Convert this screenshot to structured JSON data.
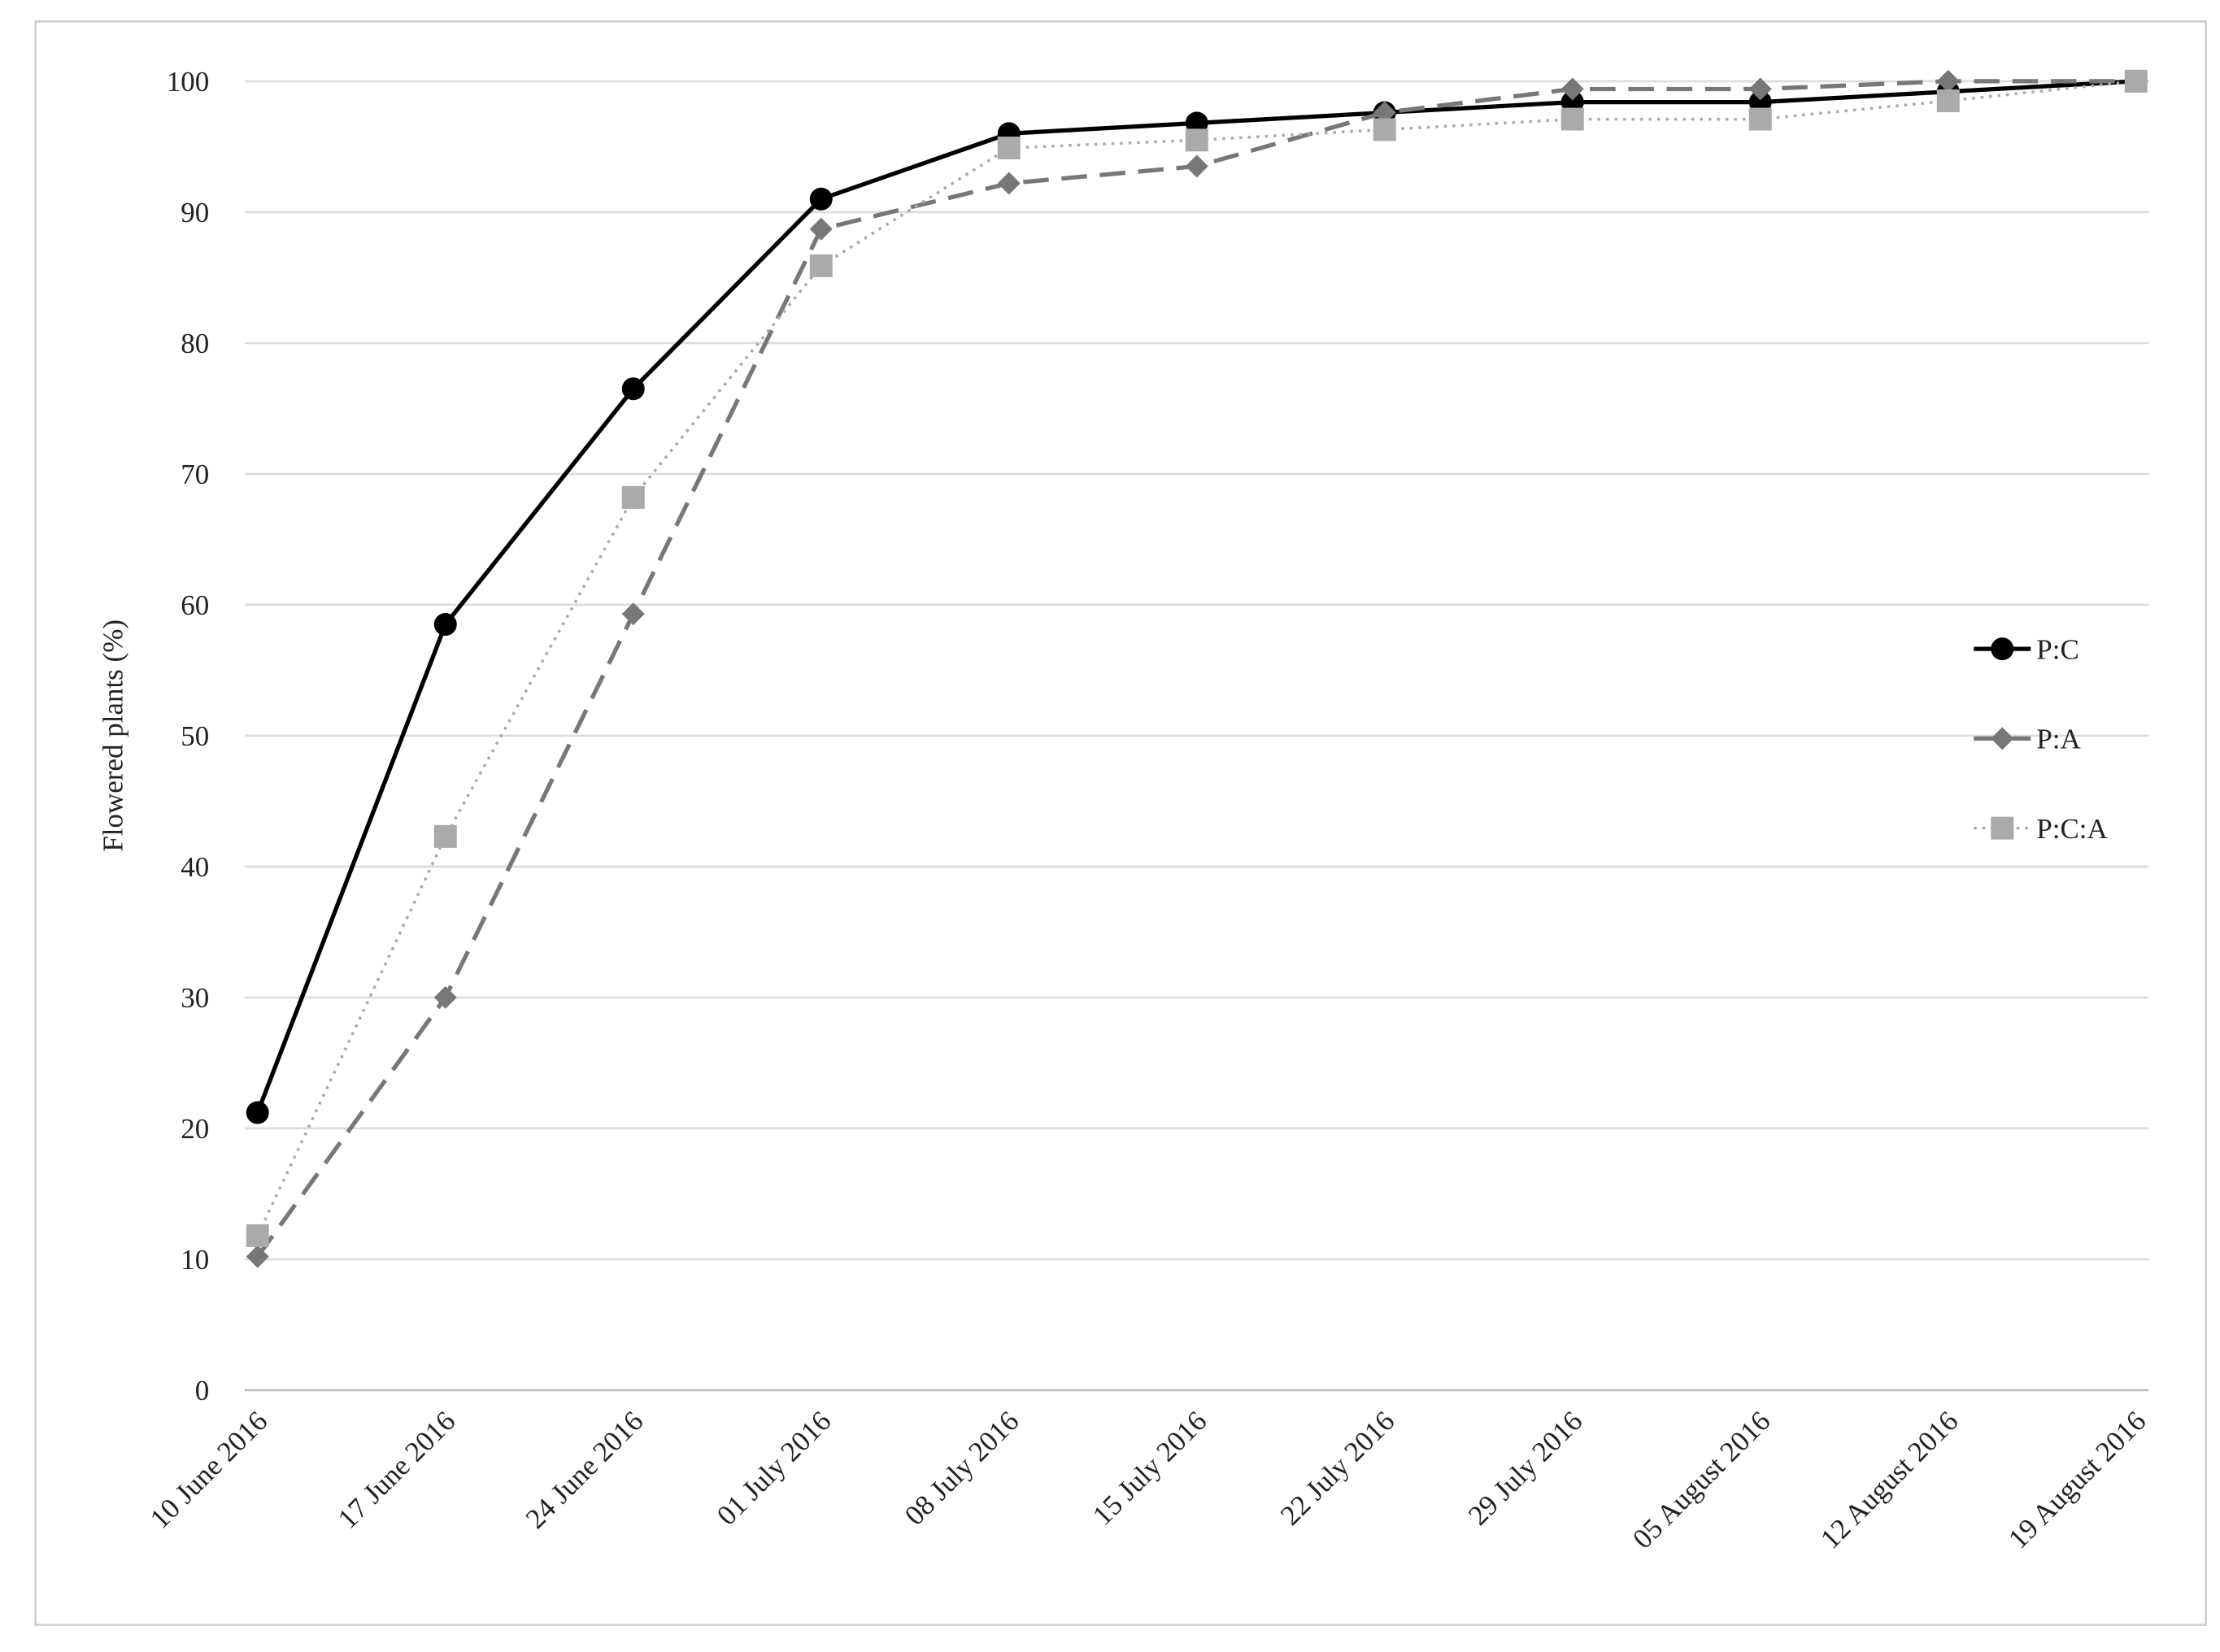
{
  "chart_data": {
    "type": "line",
    "y_label": "Flowered plants (%)",
    "categories": [
      "10 June 2016",
      "17 June 2016",
      "24 June 2016",
      "01 July 2016",
      "08 July 2016",
      "15 July 2016",
      "22 July 2016",
      "29 July 2016",
      "05 August 2016",
      "12 August 2016",
      "19 August 2016"
    ],
    "series": [
      {
        "name": "P:C",
        "color": "#000000",
        "marker": "circle",
        "line_style": "solid",
        "values": [
          21.2,
          58.5,
          76.5,
          91,
          96,
          96.8,
          97.6,
          98.4,
          98.4,
          99.2,
          100
        ]
      },
      {
        "name": "P:A",
        "color": "#777777",
        "marker": "diamond",
        "line_style": "dashed",
        "values": [
          10.2,
          30,
          59.3,
          88.7,
          92.2,
          93.5,
          97.6,
          99.4,
          99.4,
          100,
          100
        ]
      },
      {
        "name": "P:C:A",
        "color": "#aaaaaa",
        "marker": "square",
        "line_style": "dotted",
        "values": [
          11.8,
          42.3,
          68.2,
          85.9,
          94.9,
          95.5,
          96.3,
          97.1,
          97.1,
          98.5,
          100
        ]
      }
    ],
    "ylim": [
      0,
      100
    ],
    "yticks": [
      0,
      10,
      20,
      30,
      40,
      50,
      60,
      70,
      80,
      90,
      100
    ],
    "grid": true,
    "legend": "right"
  }
}
